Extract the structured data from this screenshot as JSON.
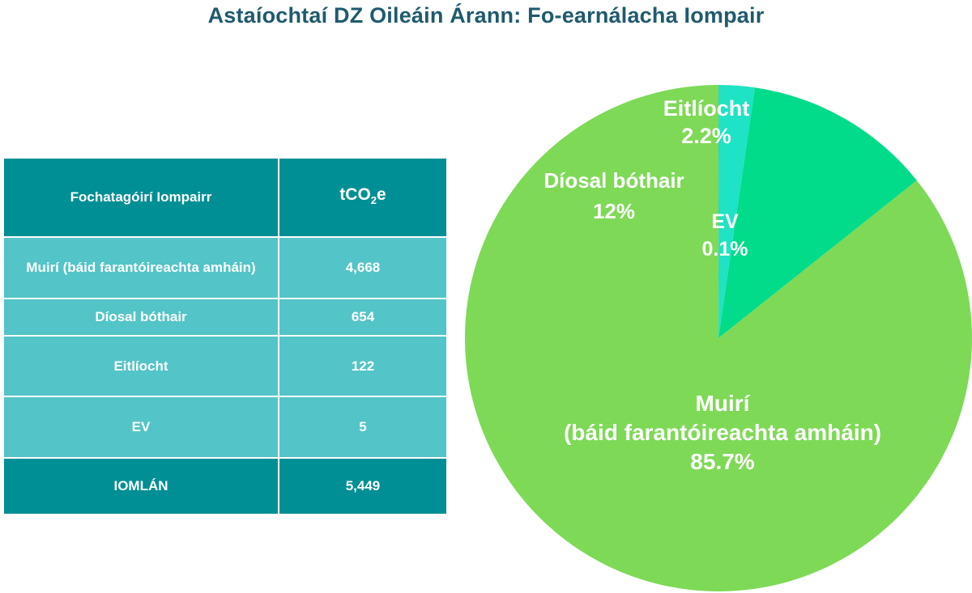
{
  "title": "Astaíochtaí DZ Oileáin Árann: Fo-earnálacha Iompair",
  "table": {
    "header": {
      "category": "Fochatagóirí Iompairr",
      "unit_main": "tCO",
      "unit_sub": "2",
      "unit_tail": "e"
    },
    "rows": [
      {
        "category": "Muirí (báid farantóireachta amháin)",
        "value": "4,668"
      },
      {
        "category": "Díosal bóthair",
        "value": "654"
      },
      {
        "category": "Eitlíocht",
        "value": "122"
      },
      {
        "category": "EV",
        "value": "5"
      }
    ],
    "total": {
      "category": "IOMLÁN",
      "value": "5,449"
    }
  },
  "chart_data": {
    "type": "pie",
    "title": "Astaíochtaí DZ Oileáin Árann: Fo-earnálacha Iompair",
    "slices": [
      {
        "label": "EV",
        "value": 0.1,
        "value_text": "0.1%",
        "color": "#2ad6b8"
      },
      {
        "label": "Eitlíocht",
        "value": 2.2,
        "value_text": "2.2%",
        "color": "#1ee3c4"
      },
      {
        "label": "Díosal bóthair",
        "value": 12,
        "value_text": "12%",
        "color": "#00dc8a"
      },
      {
        "label": "Muirí",
        "label_line2": "(báid farantóireachta amháin)",
        "value": 85.7,
        "value_text": "85.7%",
        "color": "#7ed957"
      }
    ]
  }
}
